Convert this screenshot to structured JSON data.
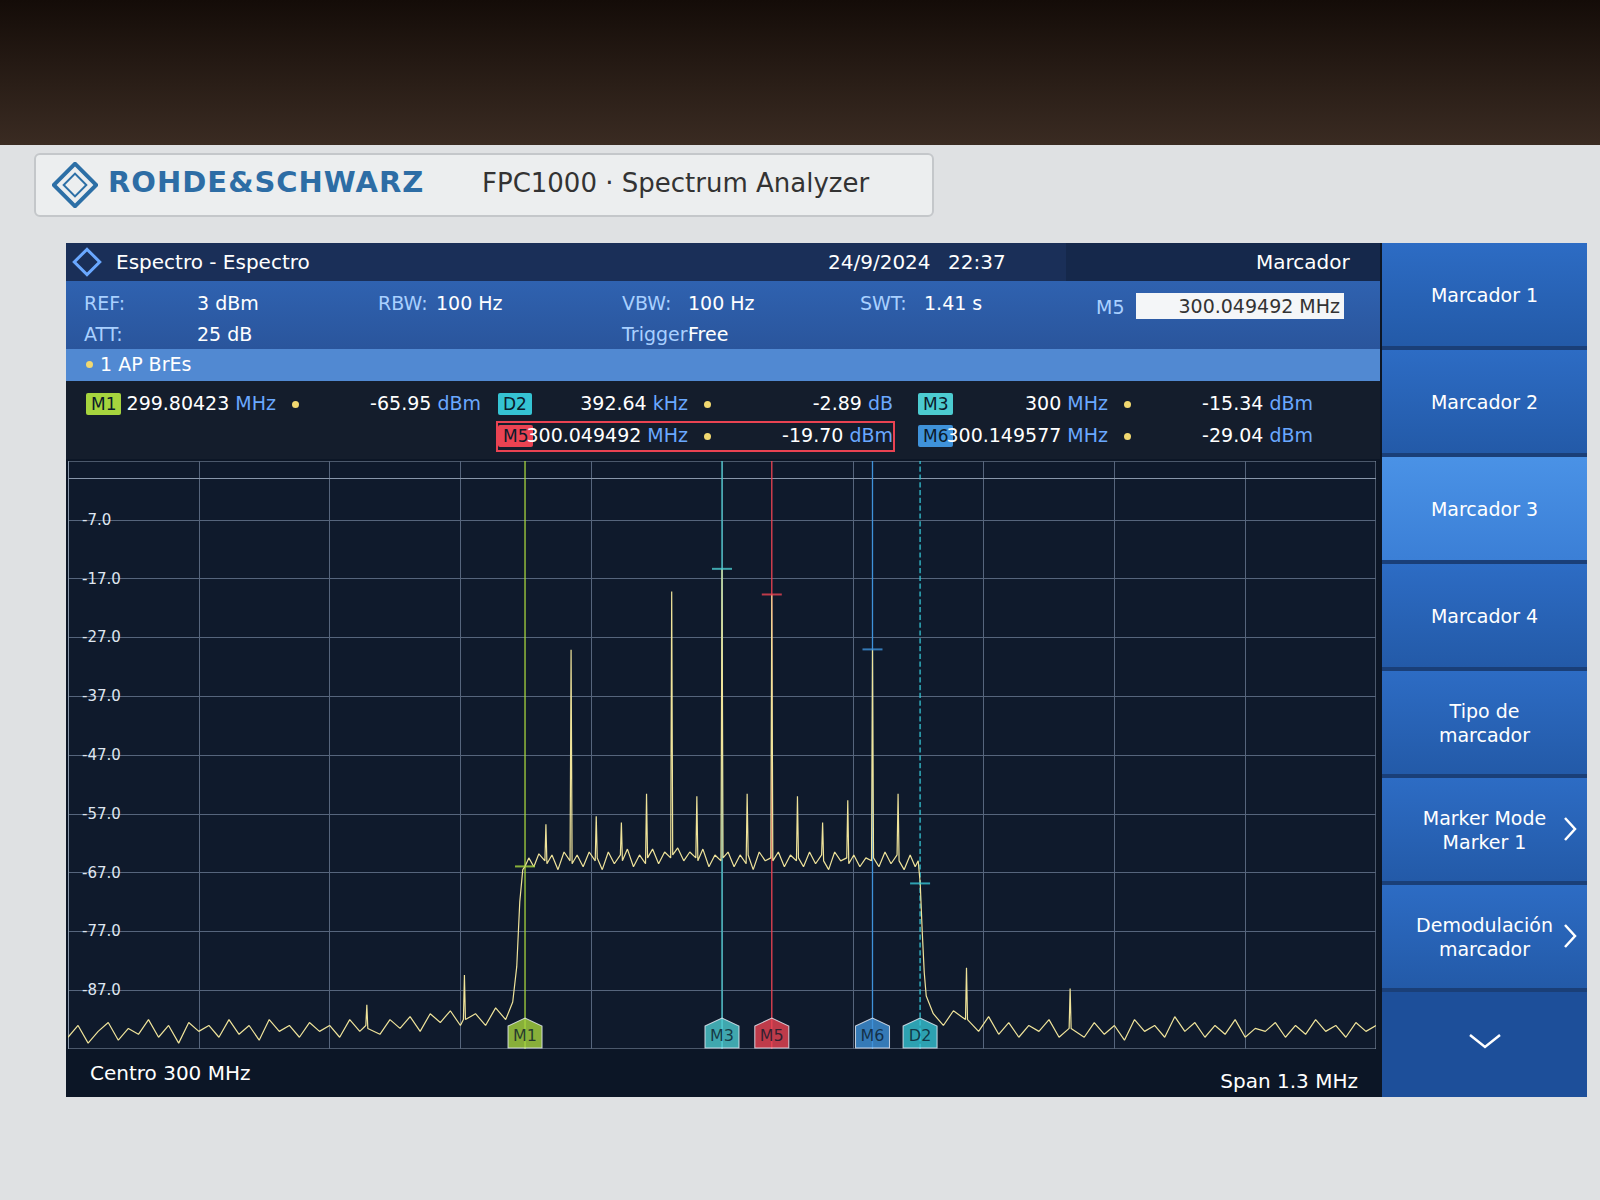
{
  "chart_data": {
    "type": "line",
    "color": "#efe39a",
    "grid": true,
    "tick_labels": "y",
    "xlim": [
      299.35,
      300.65
    ],
    "xticks": [
      299.35,
      299.48,
      299.61,
      299.74,
      299.87,
      300,
      300.13,
      300.26,
      300.39,
      300.52,
      300.65
    ],
    "ylim": [
      -97,
      3
    ],
    "yticks": [
      {
        "value": -7,
        "label": "-7.0"
      },
      {
        "value": -17,
        "label": "-17.0"
      },
      {
        "value": -27,
        "label": "-27.0"
      },
      {
        "value": -37,
        "label": "-37.0"
      },
      {
        "value": -47,
        "label": "-47.0"
      },
      {
        "value": -57,
        "label": "-57.0"
      },
      {
        "value": -67,
        "label": "-67.0"
      },
      {
        "value": -77,
        "label": "-77.0"
      },
      {
        "value": -87,
        "label": "-87.0"
      }
    ],
    "x": [
      299.35,
      299.36,
      299.37,
      299.38,
      299.39,
      299.4,
      299.41,
      299.42,
      299.43,
      299.44,
      299.45,
      299.46,
      299.47,
      299.48,
      299.49,
      299.5,
      299.51,
      299.52,
      299.53,
      299.54,
      299.55,
      299.56,
      299.57,
      299.58,
      299.59,
      299.6,
      299.61,
      299.62,
      299.63,
      299.64,
      299.646,
      299.647,
      299.648,
      299.66,
      299.67,
      299.68,
      299.69,
      299.7,
      299.71,
      299.72,
      299.73,
      299.74,
      299.743,
      299.744,
      299.745,
      299.755,
      299.765,
      299.775,
      299.785,
      299.792,
      299.796,
      299.799,
      299.802,
      299.80423,
      299.808,
      299.813,
      299.818,
      299.824,
      299.825,
      299.826,
      299.831,
      299.837,
      299.843,
      299.849,
      299.85,
      299.851,
      299.856,
      299.862,
      299.868,
      299.874,
      299.875,
      299.876,
      299.881,
      299.887,
      299.893,
      299.899,
      299.9,
      299.901,
      299.906,
      299.912,
      299.918,
      299.924,
      299.925,
      299.926,
      299.931,
      299.937,
      299.943,
      299.949,
      299.95,
      299.951,
      299.956,
      299.962,
      299.968,
      299.974,
      299.975,
      299.976,
      299.981,
      299.987,
      299.993,
      299.999,
      300,
      300.001,
      300.006,
      300.012,
      300.018,
      300.024,
      300.025,
      300.026,
      300.031,
      300.037,
      300.043,
      300.0485,
      300.0495,
      300.0505,
      300.056,
      300.062,
      300.068,
      300.074,
      300.075,
      300.076,
      300.081,
      300.087,
      300.093,
      300.099,
      300.1,
      300.101,
      300.106,
      300.112,
      300.118,
      300.124,
      300.125,
      300.126,
      300.131,
      300.137,
      300.143,
      300.1486,
      300.1496,
      300.1506,
      300.156,
      300.162,
      300.168,
      300.174,
      300.175,
      300.176,
      300.181,
      300.187,
      300.192,
      300.195,
      300.197,
      300.199,
      300.201,
      300.203,
      300.21,
      300.22,
      300.23,
      300.242,
      300.243,
      300.244,
      300.255,
      300.265,
      300.275,
      300.285,
      300.295,
      300.305,
      300.315,
      300.325,
      300.335,
      300.345,
      300.346,
      300.347,
      300.36,
      300.37,
      300.38,
      300.39,
      300.4,
      300.41,
      300.42,
      300.43,
      300.44,
      300.45,
      300.46,
      300.47,
      300.48,
      300.49,
      300.5,
      300.51,
      300.52,
      300.53,
      300.54,
      300.55,
      300.56,
      300.57,
      300.58,
      300.59,
      300.6,
      300.61,
      300.62,
      300.63,
      300.64,
      300.65
    ],
    "values": [
      -95,
      -93,
      -96,
      -94,
      -92.5,
      -95.5,
      -93.5,
      -94.5,
      -92,
      -95,
      -93,
      -96,
      -92.5,
      -94,
      -93,
      -95,
      -92,
      -94.5,
      -93,
      -95.5,
      -92,
      -94,
      -93,
      -95,
      -92.5,
      -94,
      -93,
      -95,
      -92,
      -94,
      -93,
      -89.5,
      -93.5,
      -94.5,
      -92,
      -93.5,
      -91.5,
      -94,
      -91,
      -92.5,
      -90.5,
      -93,
      -92,
      -84.4,
      -92,
      -91,
      -93,
      -90,
      -92,
      -89,
      -83,
      -72,
      -66.5,
      -65.95,
      -64.5,
      -66,
      -63.8,
      -65,
      -58.8,
      -65.5,
      -64,
      -66.5,
      -63.5,
      -65,
      -29.1,
      -65.5,
      -64,
      -66,
      -63.5,
      -65,
      -57.4,
      -64.5,
      -66.5,
      -63.5,
      -65.5,
      -64,
      -58.5,
      -65,
      -63,
      -66,
      -64,
      -65.5,
      -53.6,
      -64.5,
      -63,
      -65.5,
      -63.5,
      -64.5,
      -19.2,
      -64,
      -62.8,
      -65,
      -63.5,
      -64.5,
      -54,
      -65,
      -63,
      -66,
      -64,
      -65,
      -15.34,
      -64.5,
      -63.5,
      -66,
      -64,
      -65.5,
      -53.6,
      -64,
      -66.5,
      -63.5,
      -65,
      -64.5,
      -19.7,
      -65,
      -63.5,
      -66,
      -64,
      -65,
      -54,
      -64.5,
      -66,
      -63.5,
      -65.5,
      -64,
      -58.5,
      -65,
      -66.5,
      -63.5,
      -65,
      -64.5,
      -54.7,
      -65.5,
      -64,
      -66,
      -64.5,
      -65,
      -29.04,
      -64.5,
      -66,
      -63.5,
      -65.5,
      -64,
      -53.6,
      -65,
      -66.5,
      -64,
      -66,
      -65,
      -68.8,
      -77,
      -84,
      -88,
      -91,
      -93,
      -90.5,
      -92,
      -83.2,
      -92,
      -94,
      -91.5,
      -94.5,
      -92.5,
      -95,
      -93,
      -94,
      -92,
      -95,
      -93.5,
      -86.7,
      -93.5,
      -95,
      -92.5,
      -94.5,
      -93,
      -95.5,
      -92,
      -94,
      -93,
      -95,
      -91.5,
      -94,
      -92.5,
      -95,
      -93,
      -94.5,
      -92,
      -95,
      -93.5,
      -94,
      -92.5,
      -95,
      -93,
      -94.5,
      -92,
      -94,
      -93,
      -95,
      -92.5,
      -94,
      -93
    ],
    "markers": [
      {
        "name": "M1",
        "x": 299.80423,
        "y": -65.95,
        "x_label": "299.80423 MHz",
        "y_label": "-65.95 dBm",
        "color": "#a6d43e"
      },
      {
        "name": "D2",
        "ref": "M1",
        "dx": 0.39264,
        "dy": -2.89,
        "x_label": "392.64 kHz",
        "y_label": "-2.89 dB",
        "color": "#35c3d3",
        "line_style": "dashed"
      },
      {
        "name": "M3",
        "x": 300,
        "y": -15.34,
        "x_label": "300 MHz",
        "y_label": "-15.34 dBm",
        "color": "#4ccbd0"
      },
      {
        "name": "M5",
        "x": 300.049492,
        "y": -19.7,
        "x_label": "300.049492 MHz",
        "y_label": "-19.70 dBm",
        "color": "#ea4352"
      },
      {
        "name": "M6",
        "x": 300.149577,
        "y": -29.04,
        "x_label": "300.149577 MHz",
        "y_label": "-29.04 dBm",
        "color": "#3f92da"
      }
    ]
  },
  "screen": {
    "brand": "ROHDE&SCHWARZ",
    "model": "FPC1000 · Spectrum Analyzer",
    "title": "Espectro - Espectro",
    "date": "24/9/2024",
    "time": "22:37",
    "panel": "Marcador",
    "settings": [
      [
        "REF:",
        "3 dBm"
      ],
      [
        "ATT:",
        "25 dB"
      ],
      [
        "RBW:",
        "100 Hz"
      ],
      [
        "VBW:",
        "100 Hz"
      ],
      [
        "Trigger:",
        "Free"
      ],
      [
        "SWT:",
        "1.41 s"
      ]
    ],
    "active_marker": {
      "name": "M5",
      "label": "300.049492 MHz"
    },
    "trace": "1 AP BrEs",
    "footer": {
      "left": "Centro 300 MHz",
      "right": "Span 1.3 MHz"
    },
    "softkeys": [
      {
        "lines": [
          "Marcador 1"
        ]
      },
      {
        "lines": [
          "Marcador 2"
        ]
      },
      {
        "lines": [
          "Marcador 3"
        ],
        "selected": true
      },
      {
        "lines": [
          "Marcador 4"
        ]
      },
      {
        "lines": [
          "Tipo de",
          "marcador"
        ]
      },
      {
        "lines": [
          "Marker Mode",
          "Marker 1"
        ],
        "submenu": true
      },
      {
        "lines": [
          "Demodulación",
          "marcador"
        ],
        "submenu": true
      }
    ]
  }
}
